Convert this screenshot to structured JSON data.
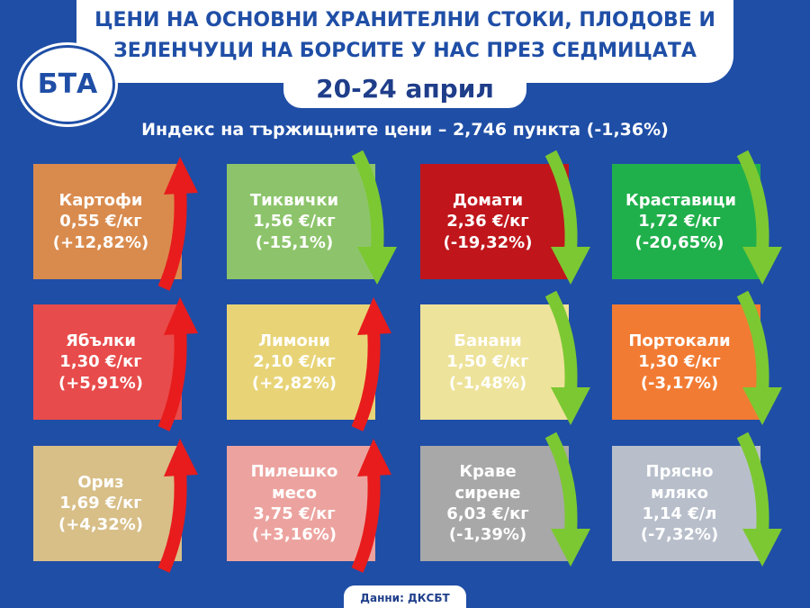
{
  "header": {
    "title_lines": [
      "ЦЕНИ НА ОСНОВНИ ХРАНИТЕЛНИ СТОКИ, ПЛОДОВЕ И",
      "ЗЕЛЕНЧУЦИ НА БОРСИТЕ У НАС ПРЕЗ СЕДМИЦАТА"
    ],
    "date": "20-24 април",
    "logo": "БТА"
  },
  "index": "Индекс на тържищните цени – 2,746 пункта (-1,36%)",
  "cards": [
    {
      "name": "Картофи",
      "price": "0,55 €/кг",
      "change": "(+12,82%)",
      "trend": "up",
      "color": "#d98b4e"
    },
    {
      "name": "Тиквички",
      "price": "1,56 €/кг",
      "change": "(-15,1%)",
      "trend": "down",
      "color": "#8dc46b"
    },
    {
      "name": "Домати",
      "price": "2,36 €/кг",
      "change": "(-19,32%)",
      "trend": "down",
      "color": "#c0161b"
    },
    {
      "name": "Краставици",
      "price": "1,72 €/кг",
      "change": "(-20,65%)",
      "trend": "down",
      "color": "#20b04b"
    },
    {
      "name": "Ябълки",
      "price": "1,30 €/кг",
      "change": "(+5,91%)",
      "trend": "up",
      "color": "#e84b4b"
    },
    {
      "name": "Лимони",
      "price": "2,10 €/кг",
      "change": "(+2,82%)",
      "trend": "up",
      "color": "#e8d477"
    },
    {
      "name": "Банани",
      "price": "1,50 €/кг",
      "change": "(-1,48%)",
      "trend": "down",
      "color": "#eee39b"
    },
    {
      "name": "Портокали",
      "price": "1,30 €/кг",
      "change": "(-3,17%)",
      "trend": "down",
      "color": "#f27b33"
    },
    {
      "name": "Ориз",
      "price": "1,69 €/кг",
      "change": "(+4,32%)",
      "trend": "up",
      "color": "#d8bf88"
    },
    {
      "name": "Пилешко месо",
      "price": "3,75 €/кг",
      "change": "(+3,16%)",
      "trend": "up",
      "color": "#eca39f"
    },
    {
      "name": "Краве сирене",
      "price": "6,03 €/кг",
      "change": "(-1,39%)",
      "trend": "down",
      "color": "#a8a8a8"
    },
    {
      "name": "Прясно мляко",
      "price": "1,14 €/л",
      "change": "(-7,32%)",
      "trend": "down",
      "color": "#b8bfcb"
    }
  ],
  "source": "Данни: ДКСБТ"
}
